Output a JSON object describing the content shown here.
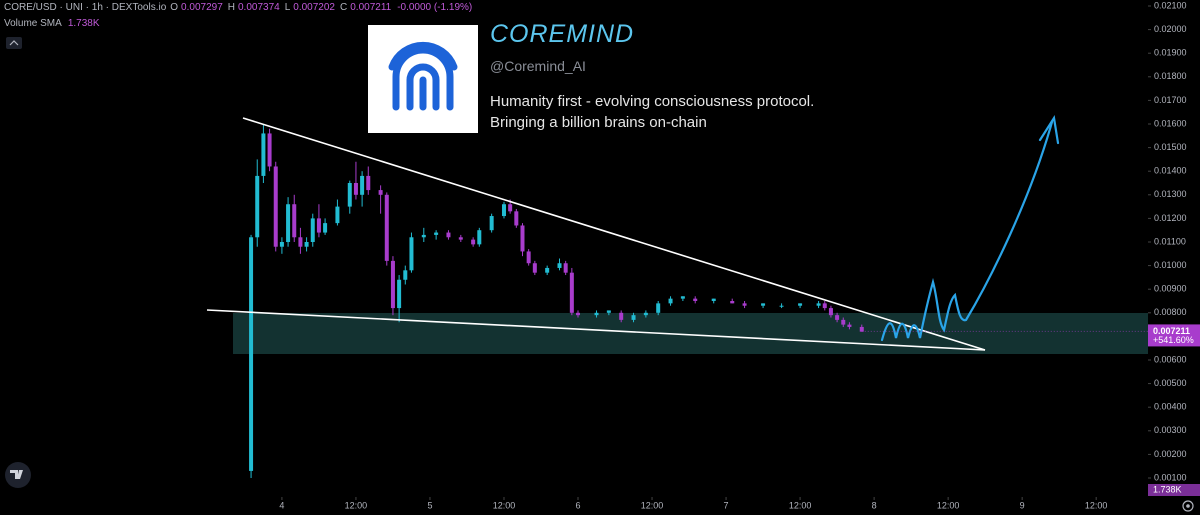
{
  "chart_data": {
    "type": "candlestick",
    "title": "CORE/USD · UNI · 1h · DEXTools.io",
    "ohlc": [
      {
        "name": "O",
        "value": 0.007297
      },
      {
        "name": "H",
        "value": 0.007374
      },
      {
        "name": "L",
        "value": 0.007202
      },
      {
        "name": "C",
        "value": 0.007211
      }
    ],
    "change": "-0.0000 (-1.19%)",
    "volume_label": "Volume SMA",
    "volume_sma": "1.738K",
    "last_price": 0.007211,
    "last_change": "+541.60%",
    "colors": {
      "up": "#22bcd2",
      "down": "#a83ccc"
    },
    "x": [
      -5,
      -4,
      -3,
      -2,
      -1,
      0,
      1,
      2,
      3,
      4,
      5,
      6,
      7,
      9,
      11,
      12,
      13,
      14,
      16,
      17,
      18,
      19,
      20,
      21,
      23,
      25,
      27,
      29,
      31,
      32,
      34,
      36,
      37,
      38,
      39,
      40,
      41,
      43,
      45,
      46,
      47,
      48,
      51,
      53,
      55,
      57,
      59,
      61,
      63,
      65,
      67,
      70,
      73,
      75,
      78,
      81,
      84,
      87,
      88,
      89,
      90,
      91,
      92,
      94
    ],
    "open": [
      0.0013,
      0.0112,
      0.0138,
      0.0156,
      0.0142,
      0.0108,
      0.011,
      0.0126,
      0.0112,
      0.0108,
      0.011,
      0.012,
      0.0114,
      0.0118,
      0.0125,
      0.0135,
      0.013,
      0.0138,
      0.0132,
      0.013,
      0.0102,
      0.0082,
      0.0094,
      0.0098,
      0.0112,
      0.0113,
      0.0114,
      0.0112,
      0.0111,
      0.0109,
      0.0115,
      0.0121,
      0.0126,
      0.0123,
      0.0117,
      0.0106,
      0.0101,
      0.0097,
      0.0099,
      0.0101,
      0.0097,
      0.008,
      0.0079,
      0.008,
      0.008,
      0.0077,
      0.0079,
      0.008,
      0.0084,
      0.0086,
      0.0086,
      0.0085,
      0.0085,
      0.0084,
      0.0083,
      0.0083,
      0.0083,
      0.0083,
      0.0084,
      0.0082,
      0.0079,
      0.0077,
      0.0075,
      0.0074
    ],
    "high": [
      0.0113,
      0.0145,
      0.016,
      0.0158,
      0.0144,
      0.0112,
      0.0129,
      0.013,
      0.0116,
      0.0112,
      0.0122,
      0.0126,
      0.012,
      0.0128,
      0.0136,
      0.0144,
      0.014,
      0.0142,
      0.0134,
      0.0131,
      0.0104,
      0.0096,
      0.01,
      0.0114,
      0.0116,
      0.0115,
      0.0115,
      0.0113,
      0.0112,
      0.0116,
      0.0122,
      0.0127,
      0.0128,
      0.0124,
      0.0118,
      0.0107,
      0.0102,
      0.01,
      0.0103,
      0.0102,
      0.0099,
      0.0081,
      0.0081,
      0.0081,
      0.0081,
      0.008,
      0.0081,
      0.0085,
      0.0087,
      0.0087,
      0.0087,
      0.0086,
      0.0086,
      0.0085,
      0.0084,
      0.0084,
      0.0084,
      0.0085,
      0.0085,
      0.0083,
      0.008,
      0.0078,
      0.0076,
      0.0075
    ],
    "low": [
      0.001,
      0.0108,
      0.0135,
      0.014,
      0.0106,
      0.0105,
      0.0108,
      0.011,
      0.0105,
      0.0106,
      0.0108,
      0.0112,
      0.0113,
      0.0117,
      0.0122,
      0.0128,
      0.0125,
      0.013,
      0.0122,
      0.01,
      0.0079,
      0.0076,
      0.0092,
      0.0097,
      0.011,
      0.0111,
      0.0111,
      0.011,
      0.0108,
      0.0108,
      0.0114,
      0.012,
      0.0122,
      0.0116,
      0.0104,
      0.01,
      0.0096,
      0.0096,
      0.0098,
      0.0096,
      0.0079,
      0.0078,
      0.0078,
      0.0079,
      0.0076,
      0.0076,
      0.0078,
      0.0079,
      0.0083,
      0.0085,
      0.0084,
      0.0084,
      0.0084,
      0.0082,
      0.0082,
      0.0082,
      0.0082,
      0.0082,
      0.0081,
      0.0078,
      0.0076,
      0.0074,
      0.0073,
      0.0072
    ],
    "close": [
      0.0112,
      0.0138,
      0.0156,
      0.0142,
      0.0108,
      0.011,
      0.0126,
      0.0112,
      0.0108,
      0.011,
      0.012,
      0.0114,
      0.0118,
      0.0125,
      0.0135,
      0.013,
      0.0138,
      0.0132,
      0.013,
      0.0102,
      0.0082,
      0.0094,
      0.0098,
      0.0112,
      0.0113,
      0.0114,
      0.0112,
      0.0111,
      0.0109,
      0.0115,
      0.0121,
      0.0126,
      0.0123,
      0.0117,
      0.0106,
      0.0101,
      0.0097,
      0.0099,
      0.0101,
      0.0097,
      0.008,
      0.0079,
      0.008,
      0.0081,
      0.0077,
      0.0079,
      0.008,
      0.0084,
      0.0086,
      0.0087,
      0.0085,
      0.0086,
      0.0084,
      0.0083,
      0.0084,
      0.0083,
      0.0084,
      0.0084,
      0.0082,
      0.0079,
      0.0077,
      0.0075,
      0.0074,
      0.0072
    ],
    "xlim": [
      -45.7,
      140.4
    ],
    "xticks": [
      {
        "value": 0,
        "label": "4"
      },
      {
        "value": 12,
        "label": "12:00"
      },
      {
        "value": 24,
        "label": "5"
      },
      {
        "value": 36,
        "label": "12:00"
      },
      {
        "value": 48,
        "label": "6"
      },
      {
        "value": 60,
        "label": "12:00"
      },
      {
        "value": 72,
        "label": "7"
      },
      {
        "value": 84,
        "label": "12:00"
      },
      {
        "value": 96,
        "label": "8"
      },
      {
        "value": 108,
        "label": "12:00"
      },
      {
        "value": 120,
        "label": "9"
      },
      {
        "value": 132,
        "label": "12:00"
      }
    ],
    "ylim": [
      0.000195,
      0.021254
    ],
    "yticks": [
      {
        "value": 0.021,
        "label": "0.02100"
      },
      {
        "value": 0.02,
        "label": "0.02000"
      },
      {
        "value": 0.019,
        "label": "0.01900"
      },
      {
        "value": 0.018,
        "label": "0.01800"
      },
      {
        "value": 0.017,
        "label": "0.01700"
      },
      {
        "value": 0.016,
        "label": "0.01600"
      },
      {
        "value": 0.015,
        "label": "0.01500"
      },
      {
        "value": 0.014,
        "label": "0.01400"
      },
      {
        "value": 0.013,
        "label": "0.01300"
      },
      {
        "value": 0.012,
        "label": "0.01200"
      },
      {
        "value": 0.011,
        "label": "0.01100"
      },
      {
        "value": 0.01,
        "label": "0.01000"
      },
      {
        "value": 0.009,
        "label": "0.00900"
      },
      {
        "value": 0.008,
        "label": "0.00800"
      },
      {
        "value": 0.006,
        "label": "0.00600"
      },
      {
        "value": 0.005,
        "label": "0.00500"
      },
      {
        "value": 0.004,
        "label": "0.00400"
      },
      {
        "value": 0.003,
        "label": "0.00300"
      },
      {
        "value": 0.002,
        "label": "0.00200"
      },
      {
        "value": 0.001,
        "label": "0.00100"
      }
    ]
  },
  "overlay": {
    "name": "COREMIND",
    "handle": "@Coremind_AI",
    "lines": [
      "Humanity first - evolving consciousness protocol.",
      "Bringing a billion brains on-chain"
    ]
  }
}
